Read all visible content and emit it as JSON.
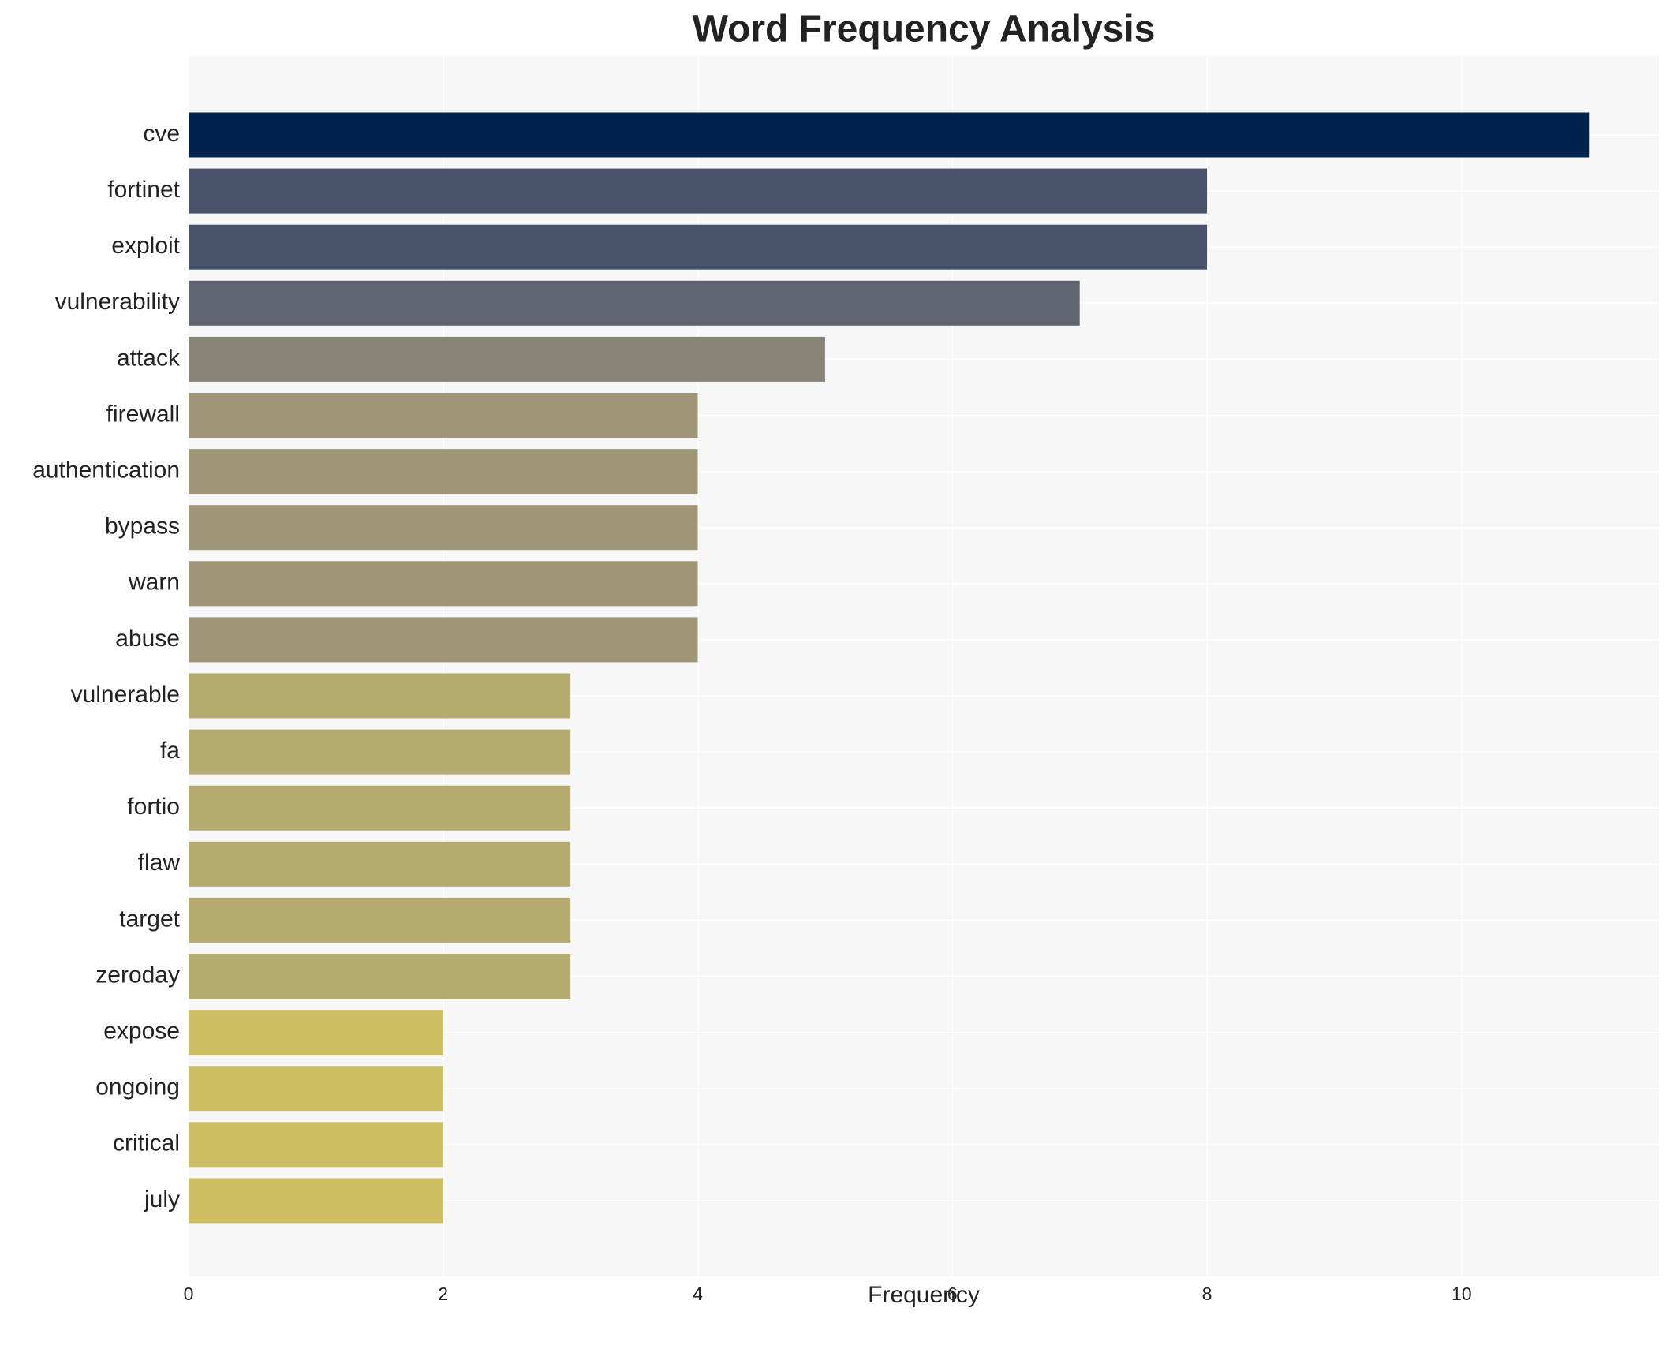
{
  "chart_data": {
    "type": "barh",
    "title": "Word Frequency Analysis",
    "xlabel": "Frequency",
    "categories": [
      "cve",
      "fortinet",
      "exploit",
      "vulnerability",
      "attack",
      "firewall",
      "authentication",
      "bypass",
      "warn",
      "abuse",
      "vulnerable",
      "fa",
      "fortio",
      "flaw",
      "target",
      "zeroday",
      "expose",
      "ongoing",
      "critical",
      "july"
    ],
    "values": [
      11,
      8,
      8,
      7,
      5,
      4,
      4,
      4,
      4,
      4,
      3,
      3,
      3,
      3,
      3,
      3,
      2,
      2,
      2,
      2
    ],
    "colors": [
      "#00224e",
      "#48526b",
      "#48526b",
      "#5f6470",
      "#878475",
      "#9e9677",
      "#9e9677",
      "#9e9677",
      "#9e9677",
      "#9e9677",
      "#b5aa70",
      "#b5aa70",
      "#b5aa70",
      "#b5aa70",
      "#b5aa70",
      "#b5aa70",
      "#cdbe63",
      "#cdbe63",
      "#cdbe63",
      "#cdbe63"
    ],
    "xlim": [
      0,
      11.55
    ],
    "xticks": [
      0,
      2,
      4,
      6,
      8,
      10
    ],
    "grid": true
  }
}
